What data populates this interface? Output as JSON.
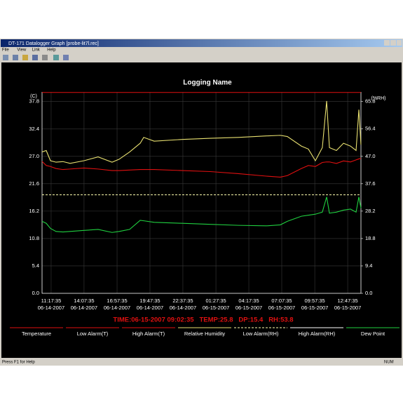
{
  "window": {
    "title": "DT-171 Datalogger Graph [probe-lit7l.rec]",
    "menu": [
      "File",
      "View",
      "Link",
      "Help"
    ],
    "status": "Press F1 for Help",
    "status_right": "NUM"
  },
  "readout": "TIME:06-15-2007 09:02:35   TEMP:25.8   DP:15.4   RH:53.8",
  "chart_data": {
    "type": "line",
    "title": "Logging Name",
    "y_label": "(C)",
    "y2_label": "(%RH)",
    "xlim": [
      -0.78,
      26.64
    ],
    "xticks": [
      {
        "value": 0,
        "label": "11:17:35",
        "date": "06-14-2007"
      },
      {
        "value": 2.83,
        "label": "14:07:35",
        "date": "06-14-2007"
      },
      {
        "value": 5.67,
        "label": "16:57:35",
        "date": "06-14-2007"
      },
      {
        "value": 8.5,
        "label": "19:47:35",
        "date": "06-14-2007"
      },
      {
        "value": 11.33,
        "label": "22:37:35",
        "date": "06-14-2007"
      },
      {
        "value": 14.17,
        "label": "01:27:35",
        "date": "06-15-2007"
      },
      {
        "value": 17,
        "label": "04:17:35",
        "date": "06-15-2007"
      },
      {
        "value": 19.83,
        "label": "07:07:35",
        "date": "06-15-2007"
      },
      {
        "value": 22.67,
        "label": "09:57:35",
        "date": "06-15-2007"
      },
      {
        "value": 25.5,
        "label": "12:47:35",
        "date": "06-15-2007"
      }
    ],
    "ylim": [
      0,
      39.7
    ],
    "yticks": [
      {
        "value": 0,
        "label": "0.0"
      },
      5.4,
      10.8,
      16.2,
      21.6,
      {
        "value": 27,
        "label": "27.0"
      },
      32.4,
      37.8
    ],
    "y2lim": [
      0,
      69.1
    ],
    "y2ticks": [
      {
        "value": 0,
        "label": "0.0"
      },
      9.4,
      18.8,
      28.2,
      37.6,
      {
        "value": 47,
        "label": "47.0"
      },
      56.4,
      65.8
    ],
    "grid": true,
    "x": [
      -0.78,
      -0.42,
      -0.06,
      0.42,
      1.02,
      1.63,
      2.83,
      4.04,
      5.24,
      5.85,
      6.75,
      7.66,
      7.96,
      8.86,
      11.27,
      13.68,
      16.09,
      18.5,
      19.71,
      20.31,
      21.52,
      22.12,
      22.72,
      23.32,
      23.69,
      23.93,
      24.53,
      25.14,
      25.74,
      26.22,
      26.46,
      26.64
    ],
    "series": [
      {
        "name": "Temperature",
        "color": "#e01010",
        "axis": "y",
        "values": [
          26.0,
          25.2,
          25.0,
          24.6,
          24.4,
          24.5,
          24.7,
          24.5,
          24.2,
          24.2,
          24.3,
          24.4,
          24.4,
          24.4,
          24.2,
          24.0,
          23.6,
          23.1,
          22.9,
          23.2,
          24.6,
          25.2,
          25.0,
          25.8,
          25.9,
          25.9,
          25.6,
          26.1,
          25.9,
          26.3,
          26.5,
          26.6
        ]
      },
      {
        "name": "Relative Humidity",
        "color": "#e8e070",
        "axis": "y2",
        "values": [
          48.5,
          49.0,
          45.5,
          45.0,
          45.2,
          44.6,
          45.5,
          46.8,
          45.0,
          46.0,
          48.5,
          51.5,
          53.5,
          52.2,
          52.8,
          53.2,
          53.5,
          54.0,
          54.2,
          53.8,
          50.5,
          49.5,
          45.5,
          50.0,
          66.0,
          50.0,
          49.0,
          51.5,
          50.5,
          49.0,
          63.0,
          51.0
        ]
      },
      {
        "name": "Dew Point",
        "color": "#20d040",
        "axis": "y",
        "values": [
          14.2,
          13.8,
          12.8,
          12.2,
          12.1,
          12.2,
          12.4,
          12.6,
          12.0,
          12.2,
          12.6,
          14.4,
          14.3,
          14.0,
          13.8,
          13.6,
          13.4,
          13.3,
          13.5,
          14.2,
          15.2,
          15.4,
          15.6,
          16.0,
          19.0,
          15.8,
          16.0,
          16.4,
          16.6,
          16.0,
          19.0,
          16.8
        ]
      }
    ],
    "reference_lines": [
      {
        "name": "High Alarm(T)",
        "value": 39.6,
        "axis": "y",
        "color": "#e01010"
      },
      {
        "name": "Low Alarm(RH)",
        "value": 33.8,
        "axis": "y2",
        "color": "#ffffb0",
        "dash": true
      }
    ],
    "alarm_legend": [
      {
        "name": "Low Alarm(T)",
        "color": "#e01010"
      },
      {
        "name": "High Alarm(RH)",
        "color": "#ffffff"
      }
    ]
  }
}
